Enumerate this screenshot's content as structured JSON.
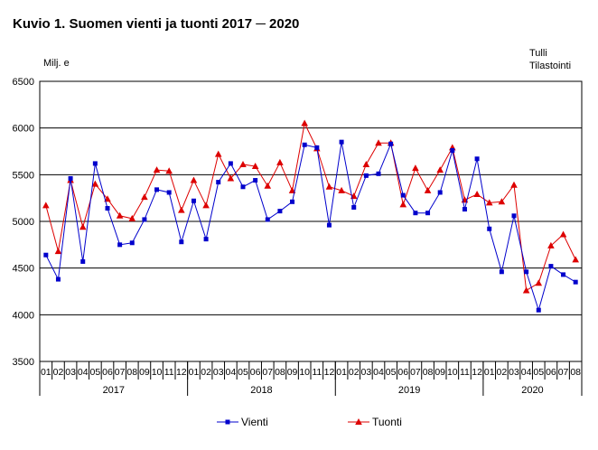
{
  "title": "Kuvio 1. Suomen vienti ja tuonti 2017 ─ 2020",
  "unit_label": "Milj. e",
  "source_line1": "Tulli",
  "source_line2": "Tilastointi",
  "colors": {
    "vienti": "#0000cc",
    "tuonti": "#dd0000",
    "grid": "#000000"
  },
  "chart_data": {
    "type": "line",
    "ylabel": "Milj. e",
    "ylim": [
      3500,
      6500
    ],
    "yticks": [
      3500,
      4000,
      4500,
      5000,
      5500,
      6000,
      6500
    ],
    "grid": true,
    "legend_position": "bottom",
    "x": [
      "01",
      "02",
      "03",
      "04",
      "05",
      "06",
      "07",
      "08",
      "09",
      "10",
      "11",
      "12",
      "01",
      "02",
      "03",
      "04",
      "05",
      "06",
      "07",
      "08",
      "09",
      "10",
      "11",
      "12",
      "01",
      "02",
      "03",
      "04",
      "05",
      "06",
      "07",
      "08",
      "09",
      "10",
      "11",
      "12",
      "01",
      "02",
      "03",
      "04",
      "05",
      "06",
      "07",
      "08"
    ],
    "years": [
      {
        "label": "2017",
        "start": 0,
        "count": 12
      },
      {
        "label": "2018",
        "start": 12,
        "count": 12
      },
      {
        "label": "2019",
        "start": 24,
        "count": 12
      },
      {
        "label": "2020",
        "start": 36,
        "count": 8
      }
    ],
    "series": [
      {
        "name": "Vienti",
        "marker": "square",
        "values": [
          4640,
          4380,
          5460,
          4570,
          5620,
          5140,
          4750,
          4770,
          5020,
          5340,
          5310,
          4780,
          5220,
          4810,
          5420,
          5620,
          5370,
          5440,
          5020,
          5110,
          5210,
          5820,
          5790,
          4960,
          5850,
          5150,
          5490,
          5510,
          5830,
          5280,
          5090,
          5090,
          5310,
          5760,
          5130,
          5670,
          4920,
          4460,
          5060,
          4460,
          4050,
          4520,
          4430,
          4350
        ]
      },
      {
        "name": "Tuonti",
        "marker": "triangle",
        "values": [
          5170,
          4680,
          5440,
          4940,
          5400,
          5240,
          5060,
          5030,
          5260,
          5550,
          5540,
          5120,
          5440,
          5170,
          5720,
          5460,
          5610,
          5590,
          5380,
          5630,
          5330,
          6050,
          5780,
          5370,
          5330,
          5270,
          5610,
          5840,
          5840,
          5180,
          5570,
          5330,
          5550,
          5790,
          5230,
          5290,
          5200,
          5210,
          5390,
          4260,
          4340,
          4740,
          4860,
          4590
        ]
      }
    ]
  }
}
